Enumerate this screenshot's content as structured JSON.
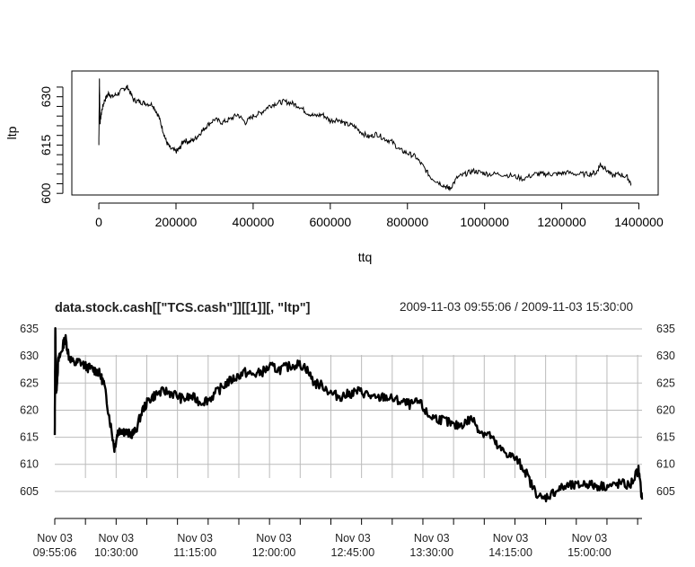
{
  "chart_data": [
    {
      "type": "line",
      "xlabel": "ttq",
      "ylabel": "ltp",
      "xlim": [
        -70000,
        1450000
      ],
      "ylim": [
        599.5,
        638
      ],
      "x_ticks": [
        0,
        200000,
        400000,
        600000,
        800000,
        1000000,
        1200000,
        1400000
      ],
      "x_tick_labels": [
        "0",
        "200000",
        "400000",
        "600000",
        "800000",
        "1000000",
        "1200000",
        "1400000"
      ],
      "y_ticks": [
        600,
        615,
        630
      ],
      "y_tick_labels": [
        "600",
        "615",
        "630"
      ],
      "y_minor_ticks": [
        603,
        606,
        609,
        612,
        618,
        621,
        624,
        627,
        633
      ],
      "series": [
        {
          "x": [
            0,
            1500,
            3000,
            8000,
            15000,
            25000,
            35000,
            50000,
            65000,
            75000,
            90000,
            105000,
            120000,
            140000,
            155000,
            165000,
            175000,
            185000,
            200000,
            210000,
            220000,
            235000,
            250000,
            265000,
            280000,
            300000,
            320000,
            340000,
            360000,
            380000,
            400000,
            420000,
            440000,
            460000,
            480000,
            500000,
            520000,
            540000,
            560000,
            580000,
            600000,
            620000,
            640000,
            660000,
            680000,
            700000,
            720000,
            740000,
            760000,
            780000,
            800000,
            820000,
            840000,
            860000,
            880000,
            900000,
            910000,
            930000,
            950000,
            970000,
            990000,
            1010000,
            1040000,
            1070000,
            1100000,
            1130000,
            1150000,
            1170000,
            1190000,
            1210000,
            1240000,
            1270000,
            1290000,
            1300000,
            1310000,
            1330000,
            1350000,
            1370000,
            1380000
          ],
          "y": [
            615,
            636,
            622,
            626,
            629,
            631,
            630,
            631,
            632.5,
            633,
            629,
            628.5,
            628,
            627.5,
            624,
            620,
            616,
            614,
            613,
            614,
            616.5,
            616,
            617,
            619,
            621,
            623,
            622,
            623,
            624.5,
            622,
            624,
            625,
            627,
            628,
            628.5,
            628,
            627,
            625,
            624,
            624.5,
            622.5,
            623,
            621.5,
            621,
            619,
            617.5,
            618.5,
            617,
            616,
            613.5,
            612.5,
            611.5,
            608.5,
            605,
            603.5,
            602,
            601.5,
            605,
            606,
            607,
            606.5,
            606,
            606,
            605.5,
            604.5,
            606,
            606,
            606,
            606,
            606.5,
            606,
            606,
            606.5,
            609,
            608,
            605.5,
            606,
            605,
            603
          ]
        }
      ]
    },
    {
      "type": "line",
      "title": "data.stock.cash[[\"TCS.cash\"]][[1]][, \"ltp\"]",
      "date_range": "2009-11-03 09:55:06 / 2009-11-03 15:30:00",
      "ylim": [
        600,
        636
      ],
      "y_ticks": [
        605,
        610,
        615,
        620,
        625,
        630,
        635
      ],
      "y_tick_labels": [
        "605",
        "610",
        "615",
        "620",
        "625",
        "630",
        "635"
      ],
      "x_labels": [
        {
          "minutes": 0,
          "line1": "Nov 03",
          "line2": "09:55:06"
        },
        {
          "minutes": 35,
          "line1": "Nov 03",
          "line2": "10:30:00"
        },
        {
          "minutes": 80,
          "line1": "Nov 03",
          "line2": "11:15:00"
        },
        {
          "minutes": 125,
          "line1": "Nov 03",
          "line2": "12:00:00"
        },
        {
          "minutes": 170,
          "line1": "Nov 03",
          "line2": "12:45:00"
        },
        {
          "minutes": 215,
          "line1": "Nov 03",
          "line2": "13:30:00"
        },
        {
          "minutes": 260,
          "line1": "Nov 03",
          "line2": "14:15:00"
        },
        {
          "minutes": 305,
          "line1": "Nov 03",
          "line2": "15:00:00"
        }
      ],
      "grid": true,
      "series": [
        {
          "minutes": [
            0,
            0.3,
            0.8,
            2,
            4,
            6,
            8,
            11,
            14,
            18,
            22,
            25,
            28,
            31,
            34,
            36,
            38,
            40,
            43,
            46,
            50,
            54,
            58,
            63,
            68,
            73,
            78,
            83,
            88,
            93,
            98,
            103,
            108,
            113,
            118,
            123,
            128,
            133,
            138,
            143,
            148,
            153,
            158,
            163,
            168,
            173,
            178,
            183,
            188,
            193,
            198,
            203,
            208,
            213,
            218,
            223,
            228,
            233,
            238,
            243,
            248,
            253,
            258,
            263,
            268,
            273,
            278,
            283,
            288,
            293,
            298,
            303,
            308,
            313,
            318,
            323,
            328,
            333,
            335
          ],
          "y": [
            615,
            635.5,
            623,
            629,
            631,
            633.5,
            630,
            628.5,
            629,
            628,
            627.5,
            627,
            625,
            619,
            613,
            616,
            616.5,
            616,
            615.5,
            616,
            620,
            622,
            623,
            623.5,
            623,
            622,
            622.5,
            621.5,
            622,
            623.5,
            625,
            626,
            627,
            626.5,
            627,
            628,
            627.5,
            628,
            628.5,
            628,
            625,
            624.5,
            623,
            622.5,
            623,
            623.5,
            623,
            622,
            622.5,
            622,
            621.5,
            621,
            621.5,
            619,
            618.5,
            618,
            617,
            617.5,
            618.5,
            616,
            615.5,
            613,
            612,
            611,
            609,
            605.5,
            603.5,
            604.5,
            605.5,
            606,
            606,
            606.5,
            606,
            606,
            606,
            606.5,
            606,
            609,
            603.5
          ]
        }
      ]
    }
  ]
}
